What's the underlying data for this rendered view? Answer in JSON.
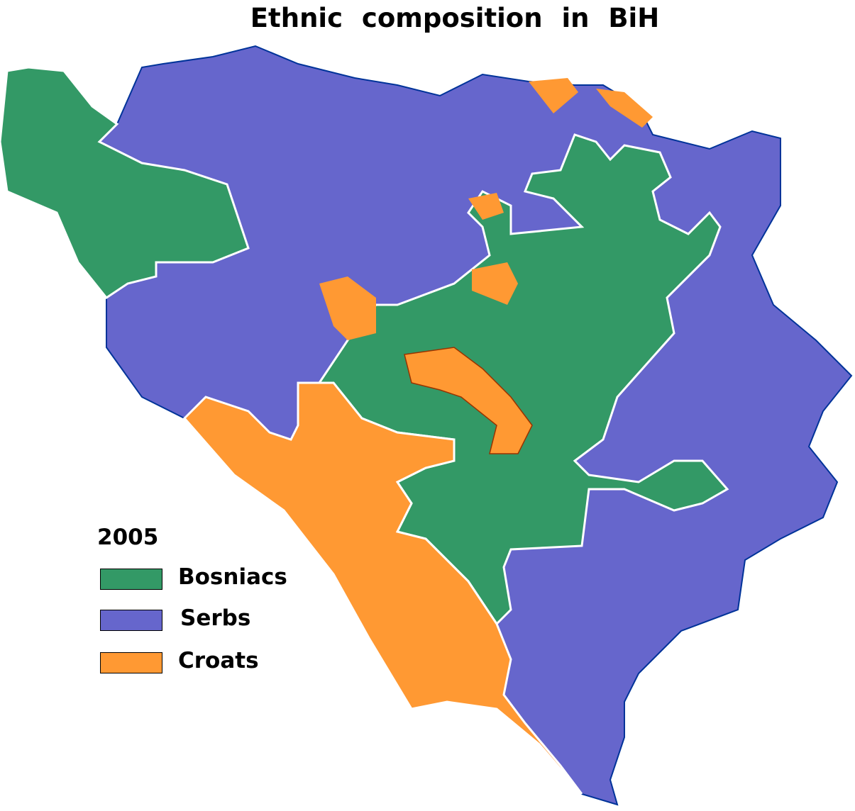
{
  "title": "Ethnic composition in BiH",
  "legend": {
    "year": "2005",
    "items": [
      {
        "label": "Bosniacs",
        "color": "#339966"
      },
      {
        "label": "Serbs",
        "color": "#6666CC"
      },
      {
        "label": "Croats",
        "color": "#FF9933"
      }
    ]
  },
  "colors": {
    "border_inner": "#993300",
    "border_serb_inner": "#003399",
    "entity_line": "#FFFFFF"
  }
}
